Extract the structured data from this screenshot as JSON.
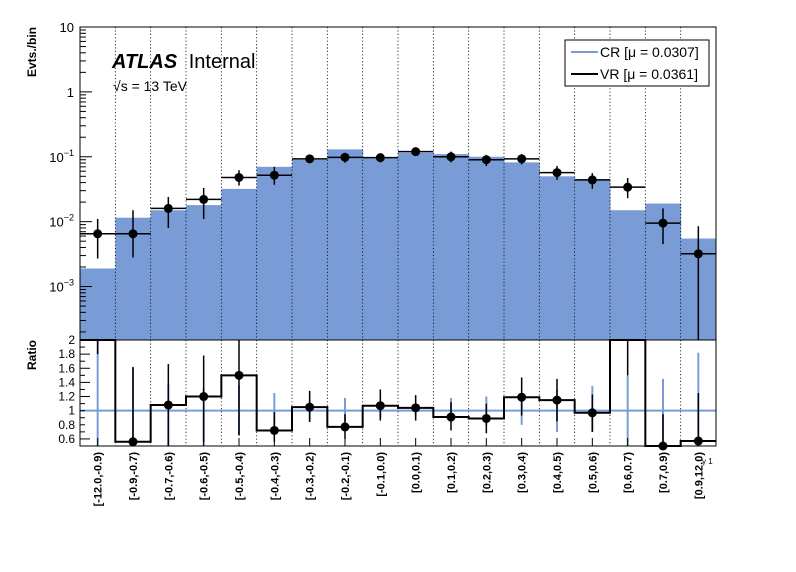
{
  "chart_data": [
    {
      "type": "bar",
      "panel": "main",
      "ylabel": "Evts./bin",
      "yscale": "log",
      "ylim": [
        0.00015,
        10
      ],
      "yticks": [
        {
          "v": 10,
          "b": "10",
          "e": ""
        },
        {
          "v": 1,
          "b": "1",
          "e": ""
        },
        {
          "v": 0.1,
          "b": "10",
          "e": "−1"
        },
        {
          "v": 0.01,
          "b": "10",
          "e": "−2"
        },
        {
          "v": 0.001,
          "b": "10",
          "e": "−3"
        }
      ],
      "categories": [
        "[-12.0,-0.9)",
        "[-0.9,-0.7)",
        "[-0.7,-0.6)",
        "[-0.6,-0.5)",
        "[-0.5,-0.4)",
        "[-0.4,-0.3)",
        "[-0.3,-0.2)",
        "[-0.2,-0.1)",
        "[-0.1,0.0)",
        "[0.0,0.1)",
        "[0.1,0.2)",
        "[0.2,0.3)",
        "[0.3,0.4)",
        "[0.4,0.5)",
        "[0.5,0.6)",
        "[0.6,0.7)",
        "[0.7,0.9)",
        "[0.9,12.0)"
      ],
      "xlabel": "γ 1",
      "series": [
        {
          "name": "CR [μ = 0.0307]",
          "color": "#7a9cd6",
          "style": "filled-histogram",
          "values": [
            0.0019,
            0.0115,
            0.015,
            0.018,
            0.032,
            0.07,
            0.09,
            0.13,
            0.095,
            0.115,
            0.11,
            0.1,
            0.082,
            0.05,
            0.045,
            0.015,
            0.019,
            0.0055
          ]
        },
        {
          "name": "VR [μ = 0.0361]",
          "color": "#000000",
          "style": "points-with-errors",
          "values": [
            0.0065,
            0.0065,
            0.016,
            0.022,
            0.048,
            0.052,
            0.093,
            0.098,
            0.097,
            0.12,
            0.1,
            0.09,
            0.093,
            0.057,
            0.044,
            0.034,
            0.0095,
            0.0032
          ],
          "err_low": [
            0.0027,
            0.0028,
            0.008,
            0.011,
            0.036,
            0.037,
            0.08,
            0.081,
            0.082,
            0.105,
            0.082,
            0.072,
            0.076,
            0.044,
            0.032,
            0.023,
            0.0045,
            0.00015
          ],
          "err_high": [
            0.011,
            0.015,
            0.024,
            0.033,
            0.062,
            0.07,
            0.108,
            0.115,
            0.112,
            0.135,
            0.12,
            0.107,
            0.11,
            0.072,
            0.056,
            0.047,
            0.016,
            0.0085
          ]
        }
      ]
    },
    {
      "type": "line",
      "panel": "ratio",
      "ylabel": "Ratio",
      "ylim": [
        0.5,
        2.0
      ],
      "yticks": [
        "0.6",
        "0.8",
        "1",
        "1.2",
        "1.4",
        "1.6",
        "1.8",
        "2"
      ],
      "reference_line": 1.0,
      "categories": [
        "[-12.0,-0.9)",
        "[-0.9,-0.7)",
        "[-0.7,-0.6)",
        "[-0.6,-0.5)",
        "[-0.5,-0.4)",
        "[-0.4,-0.3)",
        "[-0.3,-0.2)",
        "[-0.2,-0.1)",
        "[-0.1,0.0)",
        "[0.0,0.1)",
        "[0.1,0.2)",
        "[0.2,0.3)",
        "[0.3,0.4)",
        "[0.4,0.5)",
        "[0.5,0.6)",
        "[0.6,0.7)",
        "[0.7,0.9)",
        "[0.9,12.0)"
      ],
      "values": [
        3.4,
        0.56,
        1.08,
        1.2,
        1.5,
        0.72,
        1.05,
        0.77,
        1.07,
        1.04,
        0.91,
        0.89,
        1.19,
        1.15,
        0.97,
        2.3,
        0.5,
        0.57
      ],
      "err_low": [
        1.8,
        0.48,
        0.5,
        0.56,
        0.65,
        0.56,
        0.84,
        0.6,
        0.86,
        0.86,
        0.72,
        0.68,
        0.93,
        0.85,
        0.7,
        1.5,
        0.5,
        0.5
      ],
      "err_high": [
        5.0,
        1.62,
        1.66,
        1.78,
        2.35,
        0.98,
        1.28,
        0.95,
        1.3,
        1.22,
        1.12,
        1.1,
        1.47,
        1.45,
        1.23,
        3.0,
        0.95,
        1.25
      ],
      "cr_err_low": [
        0.5,
        0.5,
        0.5,
        0.5,
        0.65,
        0.75,
        0.85,
        0.85,
        0.9,
        0.92,
        0.85,
        0.8,
        0.8,
        0.7,
        0.7,
        0.5,
        0.5,
        0.5
      ],
      "cr_err_high": [
        2.0,
        1.6,
        1.38,
        1.32,
        1.36,
        1.25,
        1.15,
        1.18,
        1.12,
        1.1,
        1.18,
        1.2,
        1.23,
        1.3,
        1.35,
        1.5,
        1.45,
        1.82
      ]
    }
  ],
  "annotations": {
    "atlas_bold": "ATLAS",
    "atlas_rest": "Internal",
    "sqrt_symbol": "√",
    "energy": "s = 13 TeV"
  }
}
